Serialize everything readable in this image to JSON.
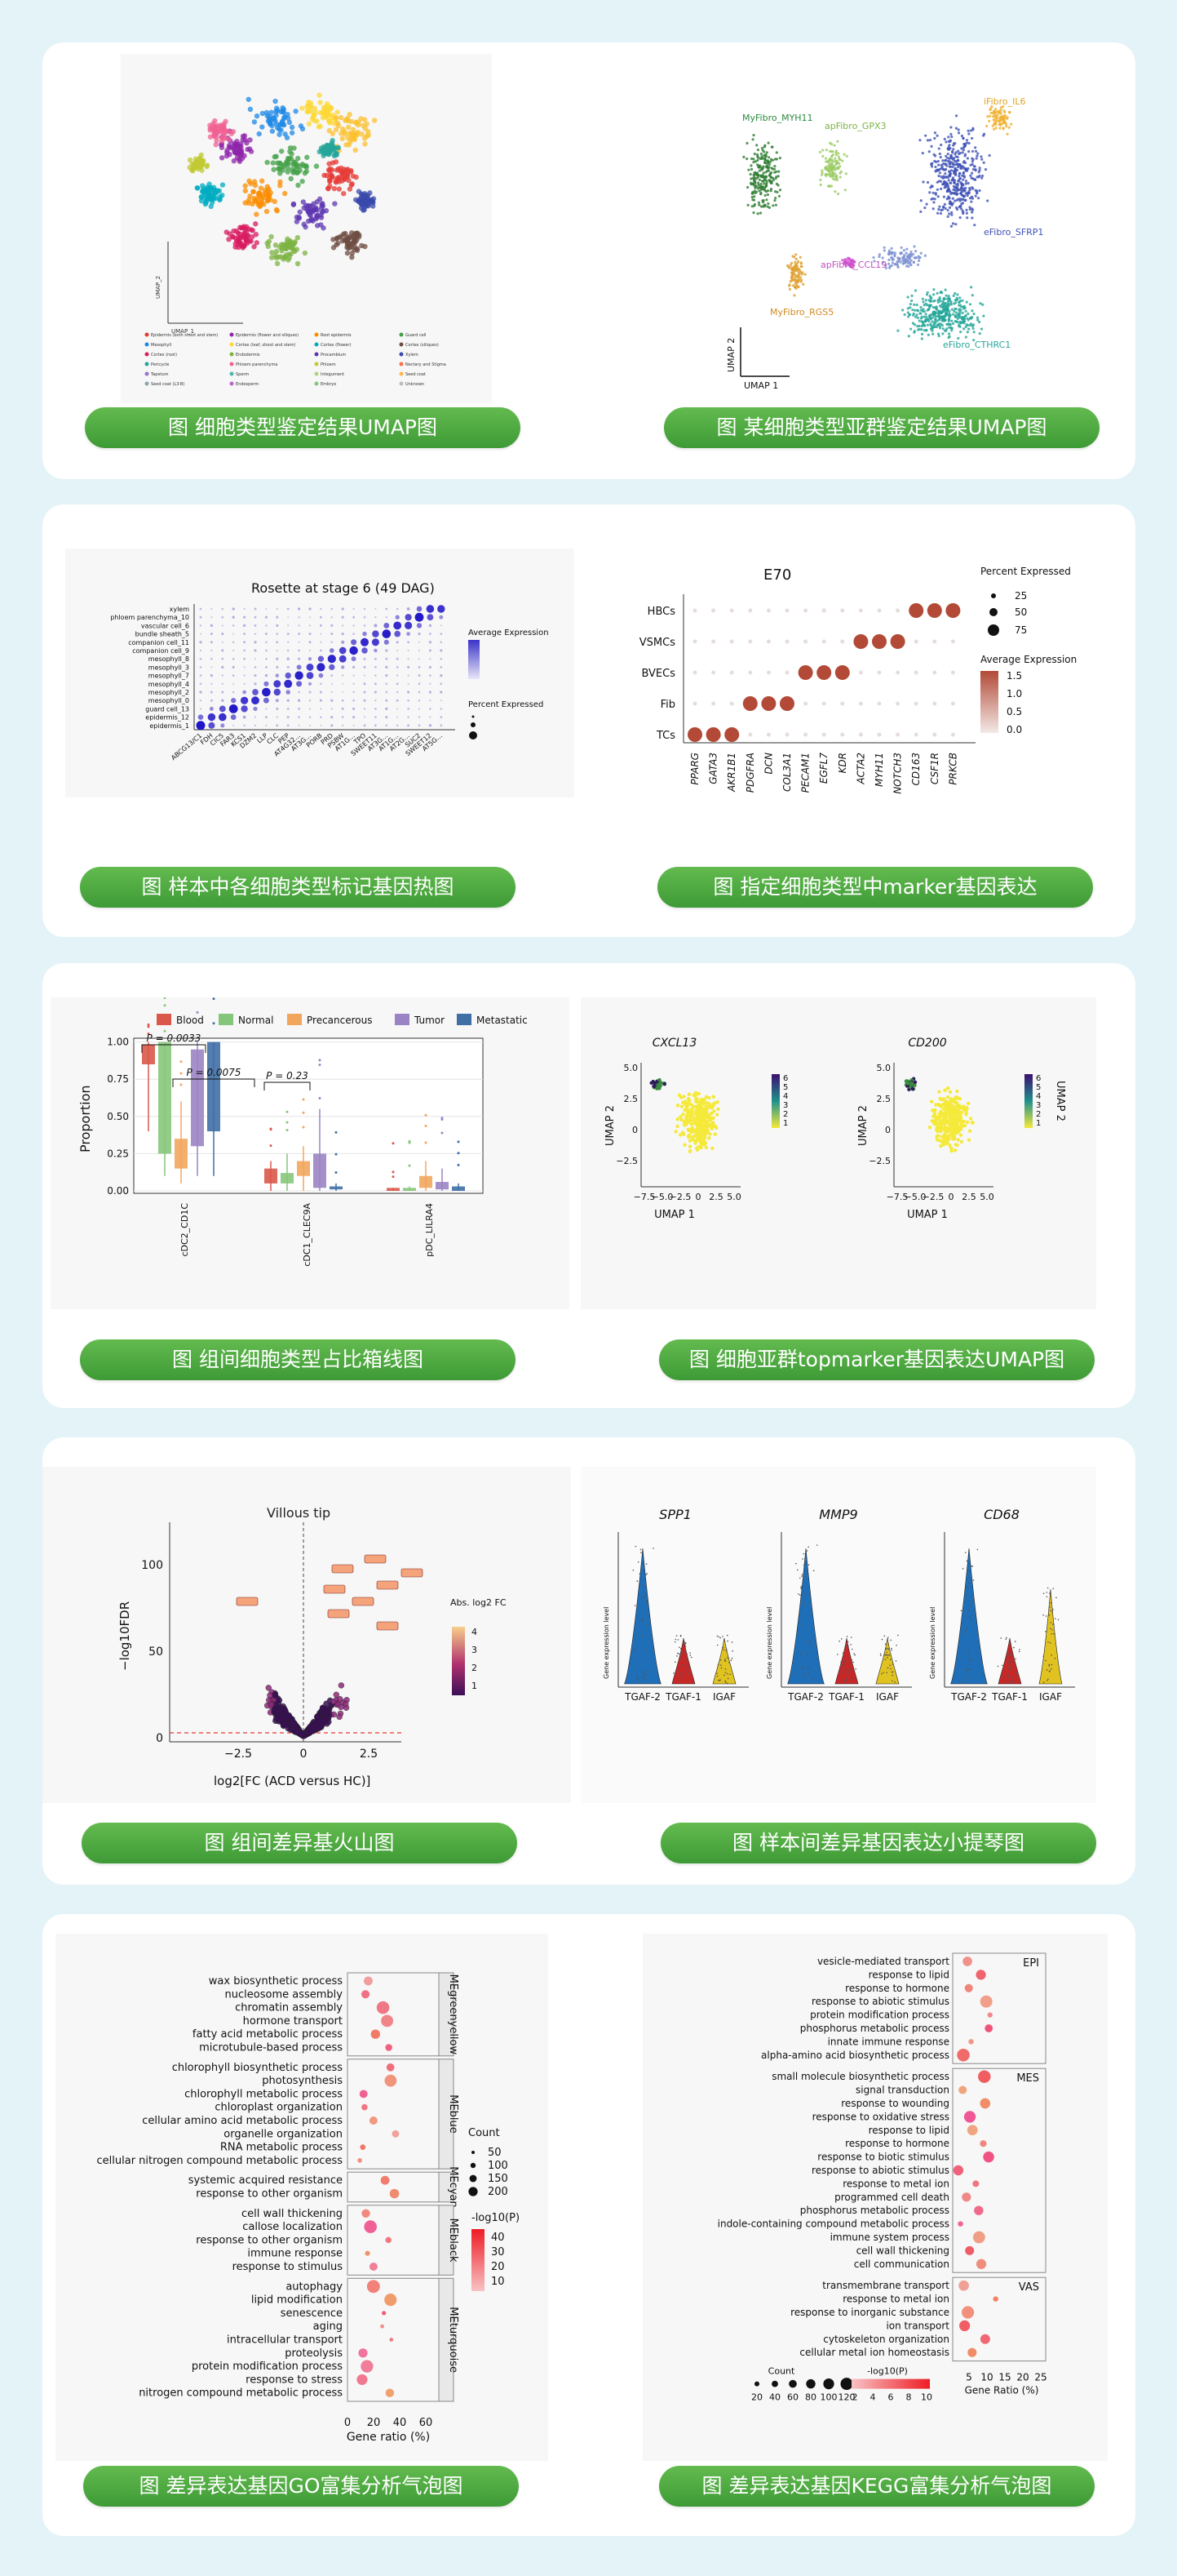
{
  "captions": [
    "图 细胞类型鉴定结果UMAP图",
    "图 某细胞类型亚群鉴定结果UMAP图",
    "图 样本中各细胞类型标记基因热图",
    "图 指定细胞类型中marker基因表达",
    "图 组间细胞类型占比箱线图",
    "图 细胞亚群topmarker基因表达UMAP图",
    "图 组间差异基火山图",
    "图 样本间差异基因表达小提琴图",
    "图 差异表达基因GO富集分析气泡图",
    "图 差异表达基因KEGG富集分析气泡图"
  ],
  "theme": {
    "background": "#e3f3f7",
    "panel": "#ffffff",
    "button_green": "#4ea83f",
    "figure_bg": "#f7f7f7"
  },
  "fig_umap_celltype": {
    "axis_x": "UMAP_1",
    "axis_y": "UMAP_2",
    "legend": [
      "Epidermis (both shoot and stem)",
      "Epidermis (flower and siliques)",
      "Root epidermis",
      "Guard cell",
      "Mesophyll",
      "Cortex (leaf, shoot and stem)",
      "Cortex (flower)",
      "Cortex (siliques)",
      "Cortex (root)",
      "Endodermis",
      "Procambium",
      "Xylem",
      "Pericycle",
      "Phloem parenchyma",
      "Phloem",
      "Nectary and Stigma",
      "Tapetum",
      "Sperm",
      "Integument",
      "Seed coat",
      "Seed coat (L3-B)",
      "Endosperm",
      "Embryo",
      "Unknown"
    ]
  },
  "fig_umap_subtype": {
    "axis_x": "UMAP 1",
    "axis_y": "UMAP 2",
    "labels": [
      "MyFibro_MYH11",
      "apFibro_GPX3",
      "iFibro_IL6",
      "eFibro_SFRP1",
      "apFibro_CCL19",
      "MyFibro_RGS5",
      "eFibro_CTHRC1"
    ]
  },
  "fig_heatmap": {
    "title": "Rosette at stage 6 (49 DAG)",
    "rows": [
      "xylem",
      "phloem parenchyma_10",
      "vascular cell_6",
      "bundle sheath_5",
      "companion cell_11",
      "companion cell_9",
      "mesophyll_8",
      "mesophyll_3",
      "mesophyll_7",
      "mesophyll_4",
      "mesophyll_2",
      "mesophyll_0",
      "guard cell_13",
      "epidermis_12",
      "epidermis_1"
    ],
    "genes": [
      "ABCG13/C1",
      "FDH",
      "CIC5",
      "FAR3",
      "KCS1",
      "DZM2",
      "LLP",
      "CLC",
      "PEP",
      "AT4G32...",
      "AT3G…",
      "PORB",
      "PRD",
      "PSBW",
      "AT1G…",
      "TPO",
      "SWEET11",
      "AT3G…",
      "AT1G…",
      "AT2G…",
      "SUC2",
      "SWEET12",
      "AT5G…"
    ],
    "legend_expr": "Average Expression",
    "legend_pct": "Percent Expressed"
  },
  "fig_e70": {
    "title": "E70",
    "rows": [
      "HBCs",
      "VSMCs",
      "BVECs",
      "Fib",
      "TCs"
    ],
    "genes": [
      "PPARG",
      "GATA3",
      "AKR1B1",
      "PDGFRA",
      "DCN",
      "COL3A1",
      "PECAM1",
      "EGFL7",
      "KDR",
      "ACTA2",
      "MYH11",
      "NOTCH3",
      "CD163",
      "CSF1R",
      "PRKCB"
    ],
    "legend_pct_title": "Percent Expressed",
    "legend_pct": [
      "25",
      "50",
      "75"
    ],
    "legend_avg_title": "Average Expression",
    "legend_avg": [
      "1.5",
      "1.0",
      "0.5",
      "0.0"
    ]
  },
  "fig_boxplot": {
    "legend": [
      {
        "name": "Blood",
        "color": "#d9584a"
      },
      {
        "name": "Normal",
        "color": "#86c67a"
      },
      {
        "name": "Precancerous",
        "color": "#f2a65d"
      },
      {
        "name": "Tumor",
        "color": "#9b84c4"
      },
      {
        "name": "Metastatic",
        "color": "#3f6fa5"
      }
    ],
    "ylabel": "Proportion",
    "yticks": [
      "1.00",
      "0.75",
      "0.50",
      "0.25",
      "0.00"
    ],
    "categories": [
      "cDC2_CD1C",
      "cDC1_CLEC9A",
      "pDC_LILRA4"
    ],
    "pvalues": [
      "P = 0.0033",
      "P = 0.0075",
      "P = 0.23"
    ]
  },
  "fig_umap_markers": {
    "genes": [
      "CXCL13",
      "CD200"
    ],
    "xlabel": "UMAP 1",
    "ylabel": "UMAP 2",
    "xticks": [
      "−7.5",
      "−5.0",
      "−2.5",
      "0",
      "2.5",
      "5.0"
    ],
    "yticks": [
      "5.0",
      "2.5",
      "0",
      "−2.5"
    ],
    "colorbar": [
      "6",
      "5",
      "4",
      "3",
      "2",
      "1"
    ]
  },
  "fig_volcano": {
    "title": "Villous tip",
    "ylabel": "−log10FDR",
    "xlabel": "log2[FC (ACD versus HC)]",
    "xticks": [
      "−2.5",
      "0",
      "2.5"
    ],
    "yticks": [
      "100",
      "50",
      "0"
    ],
    "legend_title": "Abs. log2 FC",
    "legend_ticks": [
      "4",
      "3",
      "2",
      "1"
    ]
  },
  "fig_violin": {
    "genes": [
      "SPP1",
      "MMP9",
      "CD68"
    ],
    "groups": [
      "TGAF-2",
      "TGAF-1",
      "IGAF"
    ],
    "ylabel": "Gene expression level"
  },
  "fig_go": {
    "groups": [
      {
        "name": "MEgreenyellow",
        "terms": [
          "wax biosynthetic process",
          "nucleosome assembly",
          "chromatin assembly",
          "hormone transport",
          "fatty acid metabolic process",
          "microtubule-based process"
        ]
      },
      {
        "name": "MEblue",
        "terms": [
          "chlorophyll biosynthetic process",
          "photosynthesis",
          "chlorophyll metabolic process",
          "chloroplast organization",
          "cellular amino acid metabolic process",
          "organelle organization",
          "RNA metabolic process",
          "cellular nitrogen compound metabolic process"
        ]
      },
      {
        "name": "MEcyan",
        "terms": [
          "systemic acquired resistance",
          "response to other organism"
        ]
      },
      {
        "name": "MEblack",
        "terms": [
          "cell wall thickening",
          "callose localization",
          "response to other organism",
          "immune response",
          "response to stimulus"
        ]
      },
      {
        "name": "MEturquoise",
        "terms": [
          "autophagy",
          "lipid modification",
          "senescence",
          "aging",
          "intracellular transport",
          "proteolysis",
          "protein modification process",
          "response to stress",
          "nitrogen compound metabolic process"
        ]
      }
    ],
    "xlabel": "Gene ratio (%)",
    "xticks": [
      "0",
      "20",
      "40",
      "60"
    ],
    "count_title": "Count",
    "count_ticks": [
      "50",
      "100",
      "150",
      "200"
    ],
    "p_title": "-log10(P)",
    "p_ticks": [
      "40",
      "30",
      "20",
      "10"
    ]
  },
  "fig_kegg": {
    "groups": [
      {
        "name": "EPI",
        "terms": [
          "vesicle-mediated transport",
          "response to lipid",
          "response to hormone",
          "response to abiotic stimulus",
          "protein modification process",
          "phosphorus metabolic process",
          "innate immune response",
          "alpha-amino acid biosynthetic process"
        ]
      },
      {
        "name": "MES",
        "terms": [
          "small molecule biosynthetic process",
          "signal transduction",
          "response to wounding",
          "response to oxidative stress",
          "response to lipid",
          "response to hormone",
          "response to biotic stimulus",
          "response to abiotic stimulus",
          "response to metal ion",
          "programmed cell death",
          "phosphorus metabolic process",
          "indole-containing compound metabolic process",
          "immune system process",
          "cell wall thickening",
          "cell communication"
        ]
      },
      {
        "name": "VAS",
        "terms": [
          "transmembrane transport",
          "response to metal ion",
          "response to inorganic substance",
          "ion transport",
          "cytoskeleton organization",
          "cellular metal ion homeostasis"
        ]
      }
    ],
    "xlabel": "Gene Ratio (%)",
    "xticks": [
      "5",
      "10",
      "15",
      "20",
      "25"
    ],
    "count_title": "Count",
    "count_ticks": [
      "20",
      "40",
      "60",
      "80",
      "100",
      "120"
    ],
    "p_title": "-log10(P)",
    "p_ticks": [
      "2",
      "4",
      "6",
      "8",
      "10"
    ]
  }
}
